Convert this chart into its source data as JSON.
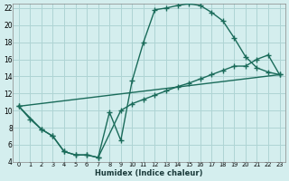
{
  "xlabel": "Humidex (Indice chaleur)",
  "bg_color": "#d4eeee",
  "grid_color": "#aed4d4",
  "line_color": "#1a6b5a",
  "xlim": [
    -0.5,
    23.5
  ],
  "ylim": [
    4,
    22.5
  ],
  "xticks": [
    0,
    1,
    2,
    3,
    4,
    5,
    6,
    7,
    8,
    9,
    10,
    11,
    12,
    13,
    14,
    15,
    16,
    17,
    18,
    19,
    20,
    21,
    22,
    23
  ],
  "yticks": [
    4,
    6,
    8,
    10,
    12,
    14,
    16,
    18,
    20,
    22
  ],
  "line1_x": [
    0,
    1,
    2,
    3,
    4,
    5,
    6,
    7,
    8,
    9,
    10,
    11,
    12,
    13,
    14,
    15,
    16,
    17,
    18,
    19,
    20,
    21,
    22,
    23
  ],
  "line1_y": [
    10.5,
    9.0,
    7.8,
    7.0,
    5.2,
    4.8,
    4.8,
    4.5,
    9.8,
    6.5,
    13.5,
    18.0,
    21.8,
    22.0,
    22.3,
    22.5,
    22.3,
    21.5,
    20.5,
    18.5,
    16.3,
    15.0,
    14.5,
    14.2
  ],
  "line2_x": [
    0,
    2,
    3,
    4,
    5,
    6,
    7,
    9,
    10,
    11,
    12,
    13,
    14,
    15,
    16,
    17,
    18,
    19,
    20,
    21,
    22,
    23
  ],
  "line2_y": [
    10.5,
    7.8,
    7.0,
    5.2,
    4.8,
    4.8,
    4.5,
    10.0,
    10.8,
    11.3,
    11.8,
    12.3,
    12.8,
    13.2,
    13.7,
    14.2,
    14.7,
    15.2,
    15.2,
    16.0,
    16.5,
    14.2
  ],
  "line3_x": [
    0,
    23
  ],
  "line3_y": [
    10.5,
    14.2
  ]
}
